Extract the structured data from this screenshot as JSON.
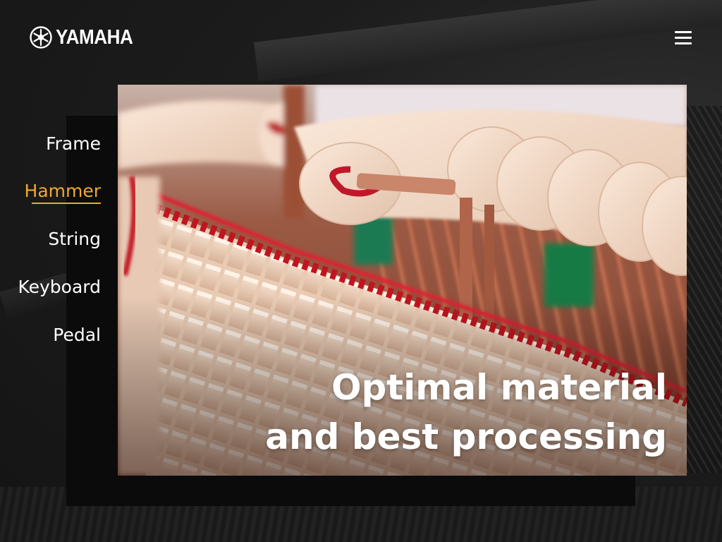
{
  "brand": {
    "name": "YAMAHA",
    "icon": "tuning-fork-logo-icon"
  },
  "header": {
    "menu_icon": "hamburger-menu-icon"
  },
  "nav": {
    "items": [
      {
        "label": "Frame",
        "active": false
      },
      {
        "label": "Hammer",
        "active": true
      },
      {
        "label": "String",
        "active": false
      },
      {
        "label": "Keyboard",
        "active": false
      },
      {
        "label": "Pedal",
        "active": false
      }
    ]
  },
  "hero": {
    "caption_line1": "Optimal material",
    "caption_line2": "and best processing",
    "image_subject": "piano hammers"
  },
  "colors": {
    "accent": "#f0a830",
    "background": "#1b1b1b",
    "panel": "#0b0b0b",
    "text": "#ffffff"
  }
}
